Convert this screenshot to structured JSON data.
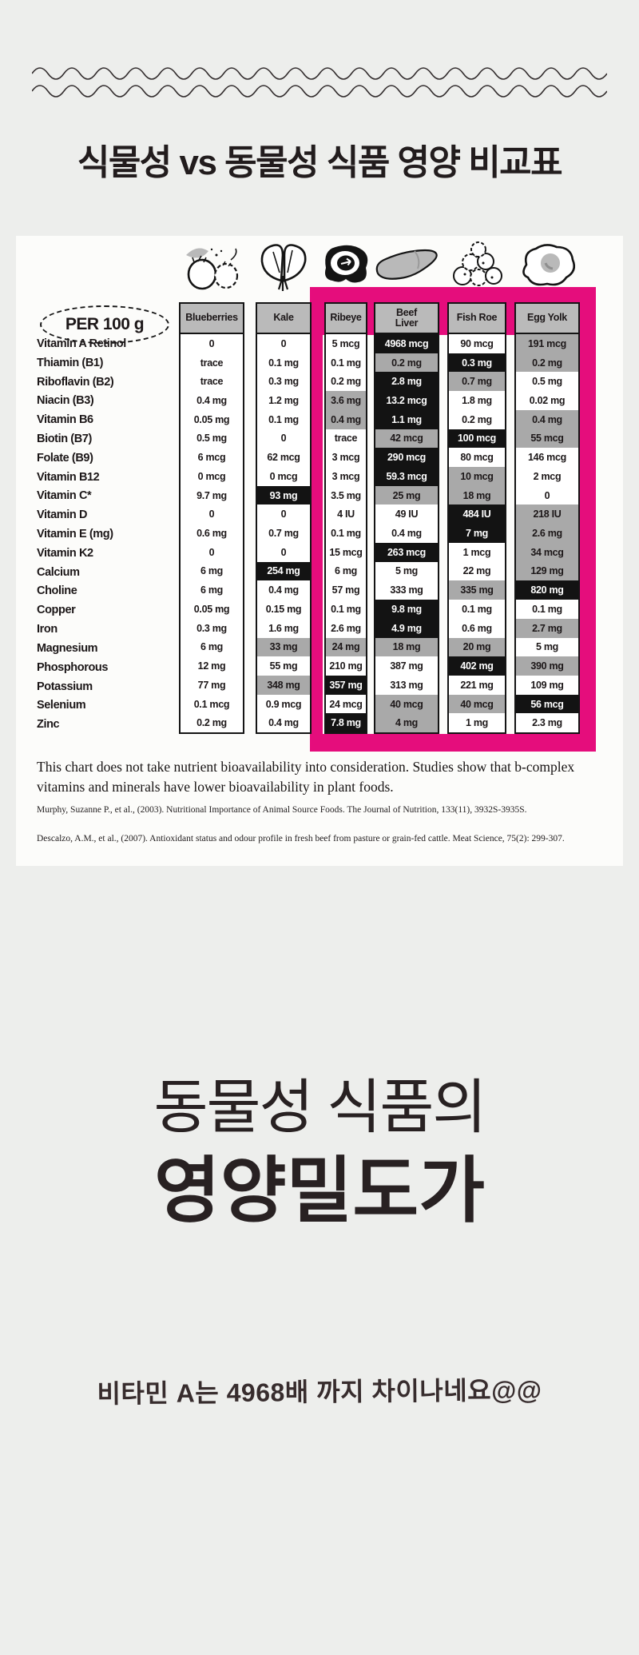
{
  "header": {
    "title": "식물성 vs 동물성 식품 영양 비교표"
  },
  "table": {
    "per_label": "PER 100 g",
    "columns": [
      {
        "label": "Blueberries",
        "icon": "blueberries-icon",
        "group": "plant"
      },
      {
        "label": "Kale",
        "icon": "kale-icon",
        "group": "plant"
      },
      {
        "label": "Ribeye",
        "icon": "ribeye-icon",
        "group": "animal"
      },
      {
        "label": "Beef Liver",
        "icon": "beef-liver-icon",
        "group": "animal",
        "two_line": true
      },
      {
        "label": "Fish Roe",
        "icon": "fish-roe-icon",
        "group": "animal"
      },
      {
        "label": "Egg Yolk",
        "icon": "egg-yolk-icon",
        "group": "animal"
      }
    ],
    "note": "This chart does not take nutrient bioavailability into consideration. Studies show that b-complex vitamins and minerals have lower bioavailability in plant foods.",
    "citations": [
      "Murphy, Suzanne P., et al., (2003). Nutritional Importance of Animal Source Foods. The Journal of Nutrition, 133(11), 3932S-3935S.",
      "Descalzo, A.M., et al., (2007). Antioxidant status and odour profile in fresh beef from pasture or grain-fed cattle. Meat Science, 75(2): 299-307."
    ]
  },
  "chart_data": {
    "type": "table",
    "title": "식물성 vs 동물성 식품 영양 비교표",
    "unit_basis": "PER 100 g",
    "columns": [
      "Blueberries",
      "Kale",
      "Ribeye",
      "Beef Liver",
      "Fish Roe",
      "Egg Yolk"
    ],
    "highlighted_columns": [
      "Ribeye",
      "Beef Liver",
      "Fish Roe",
      "Egg Yolk"
    ],
    "emphasis_legend": {
      "black": "highest value in row",
      "gray": "secondary high value",
      "plain": "no emphasis"
    },
    "rows": [
      {
        "nutrient": "Vitamin A Retinol",
        "values": [
          "0",
          "0",
          "5 mcg",
          "4968 mcg",
          "90 mcg",
          "191 mcg"
        ],
        "emphasis": [
          "plain",
          "plain",
          "plain",
          "black",
          "plain",
          "gray"
        ]
      },
      {
        "nutrient": "Thiamin (B1)",
        "values": [
          "trace",
          "0.1 mg",
          "0.1 mg",
          "0.2 mg",
          "0.3 mg",
          "0.2 mg"
        ],
        "emphasis": [
          "plain",
          "plain",
          "plain",
          "gray",
          "black",
          "gray"
        ]
      },
      {
        "nutrient": "Riboflavin (B2)",
        "values": [
          "trace",
          "0.3 mg",
          "0.2 mg",
          "2.8 mg",
          "0.7 mg",
          "0.5 mg"
        ],
        "emphasis": [
          "plain",
          "plain",
          "plain",
          "black",
          "gray",
          "plain"
        ]
      },
      {
        "nutrient": "Niacin (B3)",
        "values": [
          "0.4 mg",
          "1.2 mg",
          "3.6 mg",
          "13.2 mcg",
          "1.8 mg",
          "0.02 mg"
        ],
        "emphasis": [
          "plain",
          "plain",
          "gray",
          "black",
          "plain",
          "plain"
        ]
      },
      {
        "nutrient": "Vitamin B6",
        "values": [
          "0.05 mg",
          "0.1 mg",
          "0.4 mg",
          "1.1 mg",
          "0.2 mg",
          "0.4 mg"
        ],
        "emphasis": [
          "plain",
          "plain",
          "gray",
          "black",
          "plain",
          "gray"
        ]
      },
      {
        "nutrient": "Biotin (B7)",
        "values": [
          "0.5 mg",
          "0",
          "trace",
          "42 mcg",
          "100 mcg",
          "55 mcg"
        ],
        "emphasis": [
          "plain",
          "plain",
          "plain",
          "gray",
          "black",
          "gray"
        ]
      },
      {
        "nutrient": "Folate (B9)",
        "values": [
          "6 mcg",
          "62 mcg",
          "3 mcg",
          "290 mcg",
          "80 mcg",
          "146 mcg"
        ],
        "emphasis": [
          "plain",
          "plain",
          "plain",
          "black",
          "plain",
          "plain"
        ]
      },
      {
        "nutrient": "Vitamin B12",
        "values": [
          "0 mcg",
          "0 mcg",
          "3 mcg",
          "59.3 mcg",
          "10 mcg",
          "2 mcg"
        ],
        "emphasis": [
          "plain",
          "plain",
          "plain",
          "black",
          "gray",
          "plain"
        ]
      },
      {
        "nutrient": "Vitamin C*",
        "values": [
          "9.7 mg",
          "93 mg",
          "3.5 mg",
          "25 mg",
          "18 mg",
          "0"
        ],
        "emphasis": [
          "plain",
          "black",
          "plain",
          "gray",
          "gray",
          "plain"
        ]
      },
      {
        "nutrient": "Vitamin D",
        "values": [
          "0",
          "0",
          "4 IU",
          "49 IU",
          "484 IU",
          "218 IU"
        ],
        "emphasis": [
          "plain",
          "plain",
          "plain",
          "plain",
          "black",
          "gray"
        ]
      },
      {
        "nutrient": "Vitamin E (mg)",
        "values": [
          "0.6 mg",
          "0.7 mg",
          "0.1 mg",
          "0.4 mg",
          "7 mg",
          "2.6 mg"
        ],
        "emphasis": [
          "plain",
          "plain",
          "plain",
          "plain",
          "black",
          "gray"
        ]
      },
      {
        "nutrient": "Vitamin K2",
        "values": [
          "0",
          "0",
          "15 mcg",
          "263 mcg",
          "1 mcg",
          "34 mcg"
        ],
        "emphasis": [
          "plain",
          "plain",
          "plain",
          "black",
          "plain",
          "gray"
        ]
      },
      {
        "nutrient": "Calcium",
        "values": [
          "6 mg",
          "254 mg",
          "6 mg",
          "5 mg",
          "22 mg",
          "129 mg"
        ],
        "emphasis": [
          "plain",
          "black",
          "plain",
          "plain",
          "plain",
          "gray"
        ]
      },
      {
        "nutrient": "Choline",
        "values": [
          "6 mg",
          "0.4 mg",
          "57 mg",
          "333 mg",
          "335 mg",
          "820 mg"
        ],
        "emphasis": [
          "plain",
          "plain",
          "plain",
          "plain",
          "gray",
          "black"
        ]
      },
      {
        "nutrient": "Copper",
        "values": [
          "0.05 mg",
          "0.15 mg",
          "0.1 mg",
          "9.8 mg",
          "0.1 mg",
          "0.1 mg"
        ],
        "emphasis": [
          "plain",
          "plain",
          "plain",
          "black",
          "plain",
          "plain"
        ]
      },
      {
        "nutrient": "Iron",
        "values": [
          "0.3 mg",
          "1.6 mg",
          "2.6 mg",
          "4.9 mg",
          "0.6 mg",
          "2.7 mg"
        ],
        "emphasis": [
          "plain",
          "plain",
          "plain",
          "black",
          "plain",
          "gray"
        ]
      },
      {
        "nutrient": "Magnesium",
        "values": [
          "6 mg",
          "33 mg",
          "24 mg",
          "18 mg",
          "20 mg",
          "5 mg"
        ],
        "emphasis": [
          "plain",
          "gray",
          "gray",
          "gray",
          "gray",
          "plain"
        ]
      },
      {
        "nutrient": "Phosphorous",
        "values": [
          "12 mg",
          "55 mg",
          "210 mg",
          "387 mg",
          "402 mg",
          "390 mg"
        ],
        "emphasis": [
          "plain",
          "plain",
          "plain",
          "plain",
          "black",
          "gray"
        ]
      },
      {
        "nutrient": "Potassium",
        "values": [
          "77 mg",
          "348 mg",
          "357 mg",
          "313 mg",
          "221 mg",
          "109 mg"
        ],
        "emphasis": [
          "plain",
          "gray",
          "black",
          "plain",
          "plain",
          "plain"
        ]
      },
      {
        "nutrient": "Selenium",
        "values": [
          "0.1 mcg",
          "0.9 mcg",
          "24 mcg",
          "40 mcg",
          "40 mcg",
          "56 mcg"
        ],
        "emphasis": [
          "plain",
          "plain",
          "plain",
          "gray",
          "gray",
          "black"
        ]
      },
      {
        "nutrient": "Zinc",
        "values": [
          "0.2 mg",
          "0.4 mg",
          "7.8 mg",
          "4 mg",
          "1 mg",
          "2.3 mg"
        ],
        "emphasis": [
          "plain",
          "plain",
          "black",
          "gray",
          "plain",
          "plain"
        ]
      }
    ]
  },
  "headline": {
    "line1": "동물성 식품의",
    "line2": "영양밀도가"
  },
  "footer": {
    "note": "비타민 A는 4968배 까지 차이나네요@@"
  },
  "colors": {
    "background": "#edeeec",
    "card": "#fcfcfa",
    "highlight_pink": "#e50d7c",
    "header_gray": "#bababa",
    "cell_gray": "#a9a9a9",
    "cell_black": "#131313"
  }
}
